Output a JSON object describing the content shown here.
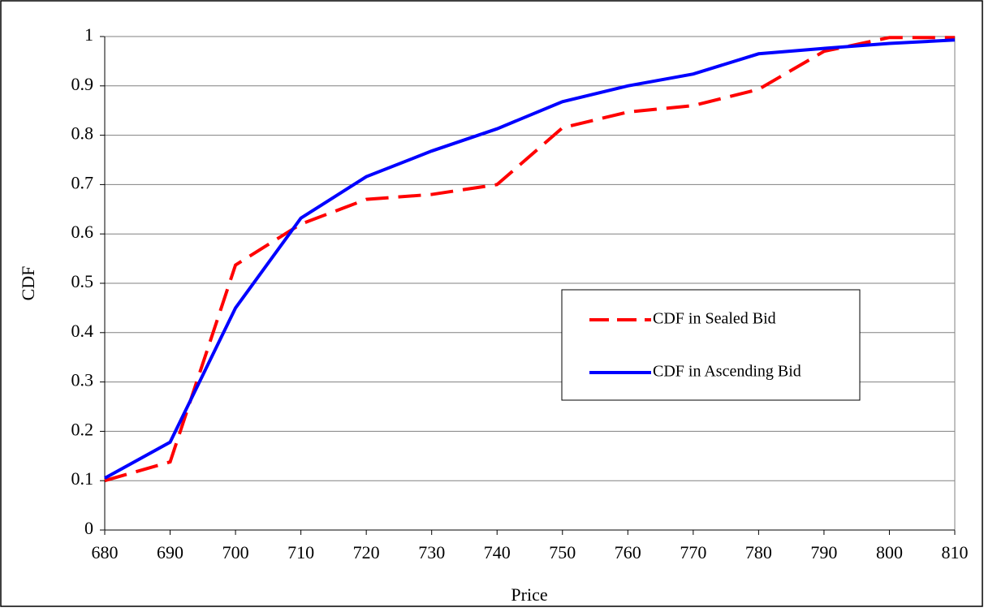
{
  "chart_data": {
    "type": "line",
    "xlabel": "Price",
    "ylabel": "CDF",
    "x": [
      680,
      690,
      700,
      710,
      720,
      730,
      740,
      750,
      760,
      770,
      780,
      790,
      800,
      810
    ],
    "series": [
      {
        "name": "CDF in Sealed Bid",
        "color": "#ff0000",
        "style": "dashed",
        "values": [
          0.1,
          0.138,
          0.537,
          0.62,
          0.67,
          0.68,
          0.7,
          0.815,
          0.847,
          0.86,
          0.893,
          0.97,
          0.998,
          0.998
        ]
      },
      {
        "name": "CDF in Ascending Bid",
        "color": "#0000ff",
        "style": "solid",
        "values": [
          0.105,
          0.178,
          0.45,
          0.632,
          0.716,
          0.768,
          0.813,
          0.868,
          0.9,
          0.924,
          0.965,
          0.976,
          0.986,
          0.993
        ]
      }
    ],
    "xlim": [
      680,
      810
    ],
    "xticks": [
      680,
      690,
      700,
      710,
      720,
      730,
      740,
      750,
      760,
      770,
      780,
      790,
      800,
      810
    ],
    "ylim": [
      0,
      1
    ],
    "yticks": [
      0,
      0.1,
      0.2,
      0.3,
      0.4,
      0.5,
      0.6,
      0.7,
      0.8,
      0.9,
      1
    ],
    "grid": true,
    "legend": "right"
  }
}
